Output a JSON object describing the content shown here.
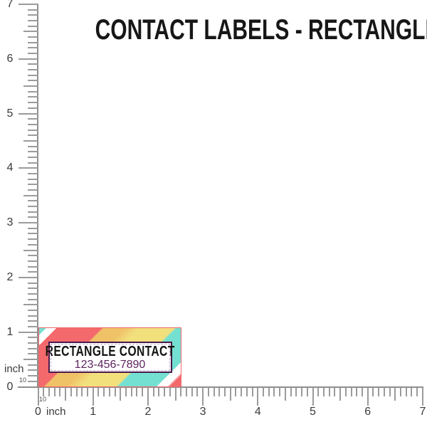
{
  "title": "CONTACT LABELS - RECTANGLE",
  "sticker": {
    "name": "RECTANGLE CONTACT",
    "phone": "123-456-7890"
  },
  "rulers": {
    "unit": "inch",
    "subdivision": "10",
    "vertical": {
      "numbers": [
        "0",
        "1",
        "2",
        "3",
        "4",
        "5",
        "6",
        "7"
      ]
    },
    "horizontal": {
      "numbers": [
        "0",
        "1",
        "2",
        "3",
        "4",
        "5",
        "6",
        "7"
      ]
    }
  },
  "colors": {
    "stripe_teal": "#74e0d1",
    "stripe_white": "#ffffff",
    "stripe_coral": "#f3696c",
    "stripe_gold": "#f0c268",
    "stripe_yellow": "#f2e07d",
    "sticker_edge": "#ef696c",
    "box_border_purple": "#491a4b",
    "box_dotted_purple": "#cbabce",
    "phone_text_purple": "#5c2460",
    "title_text": "#171717",
    "ruler_gray": "#9b9b9b"
  }
}
